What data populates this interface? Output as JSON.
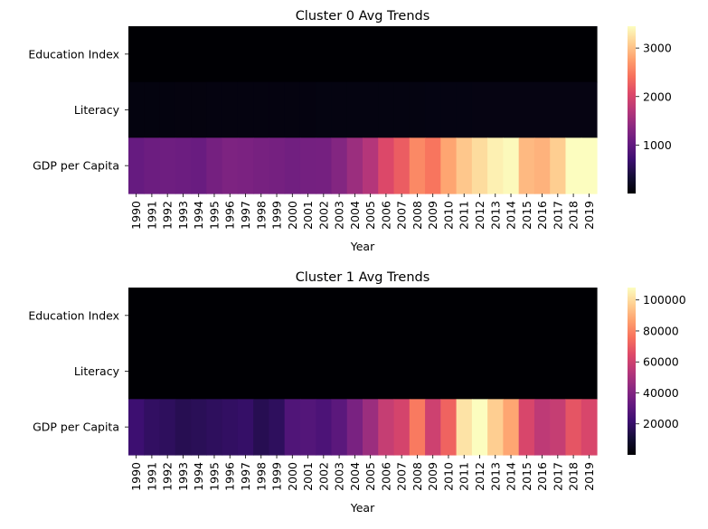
{
  "chart_data": [
    {
      "type": "heatmap",
      "title": "Cluster 0 Avg Trends",
      "xlabel": "Year",
      "ylabel": "",
      "x": [
        "1990",
        "1991",
        "1992",
        "1993",
        "1994",
        "1995",
        "1996",
        "1997",
        "1998",
        "1999",
        "2000",
        "2001",
        "2002",
        "2003",
        "2004",
        "2005",
        "2006",
        "2007",
        "2008",
        "2009",
        "2010",
        "2011",
        "2012",
        "2013",
        "2014",
        "2015",
        "2016",
        "2017",
        "2018",
        "2019"
      ],
      "rows": [
        "Education Index",
        "Literacy",
        "GDP per Capita"
      ],
      "values": [
        [
          0.5,
          0.5,
          0.5,
          0.5,
          0.5,
          0.5,
          0.5,
          0.5,
          0.5,
          0.5,
          0.5,
          0.5,
          0.5,
          0.5,
          0.5,
          0.6,
          0.6,
          0.6,
          0.6,
          0.6,
          0.6,
          0.6,
          0.6,
          0.6,
          0.6,
          0.6,
          0.6,
          0.6,
          0.6,
          0.6
        ],
        [
          75,
          76,
          77,
          78,
          79,
          80,
          81,
          82,
          83,
          84,
          85,
          86,
          87,
          88,
          89,
          90,
          91,
          92,
          93,
          94,
          94,
          94,
          95,
          95,
          95,
          95,
          96,
          96,
          96,
          96
        ],
        [
          1050,
          1100,
          1120,
          1100,
          1080,
          1180,
          1250,
          1230,
          1200,
          1180,
          1150,
          1170,
          1180,
          1300,
          1500,
          1700,
          2050,
          2250,
          2600,
          2450,
          2800,
          3050,
          3200,
          3350,
          3420,
          2950,
          2900,
          3100,
          3450,
          3450
        ]
      ],
      "colorbar": {
        "min": 0,
        "max": 3450,
        "ticks": [
          1000,
          2000,
          3000
        ],
        "colormap": "magma"
      }
    },
    {
      "type": "heatmap",
      "title": "Cluster 1 Avg Trends",
      "xlabel": "Year",
      "ylabel": "",
      "x": [
        "1990",
        "1991",
        "1992",
        "1993",
        "1994",
        "1995",
        "1996",
        "1997",
        "1998",
        "1999",
        "2000",
        "2001",
        "2002",
        "2003",
        "2004",
        "2005",
        "2006",
        "2007",
        "2008",
        "2009",
        "2010",
        "2011",
        "2012",
        "2013",
        "2014",
        "2015",
        "2016",
        "2017",
        "2018",
        "2019"
      ],
      "rows": [
        "Education Index",
        "Literacy",
        "GDP per Capita"
      ],
      "values": [
        [
          0.8,
          0.8,
          0.8,
          0.8,
          0.8,
          0.8,
          0.8,
          0.8,
          0.8,
          0.8,
          0.8,
          0.8,
          0.8,
          0.8,
          0.8,
          0.8,
          0.8,
          0.8,
          0.8,
          0.8,
          0.8,
          0.8,
          0.8,
          0.8,
          0.8,
          0.9,
          0.9,
          0.9,
          0.9,
          0.9
        ],
        [
          98,
          98,
          98,
          98,
          98,
          98,
          98,
          98,
          98,
          98,
          98,
          98,
          98,
          98,
          98,
          98,
          98,
          98,
          98,
          98,
          98,
          98,
          98,
          98,
          98,
          98,
          98,
          98,
          98,
          98
        ],
        [
          22000,
          19000,
          18000,
          16000,
          17000,
          18000,
          19000,
          20000,
          16000,
          18000,
          27000,
          28000,
          26000,
          30000,
          38000,
          47000,
          58000,
          62000,
          78000,
          60000,
          72000,
          102000,
          108000,
          97000,
          88000,
          63000,
          56000,
          58000,
          68000,
          63000
        ]
      ],
      "colorbar": {
        "min": 0,
        "max": 108000,
        "ticks": [
          20000,
          40000,
          60000,
          80000,
          100000
        ],
        "colormap": "magma"
      }
    }
  ]
}
